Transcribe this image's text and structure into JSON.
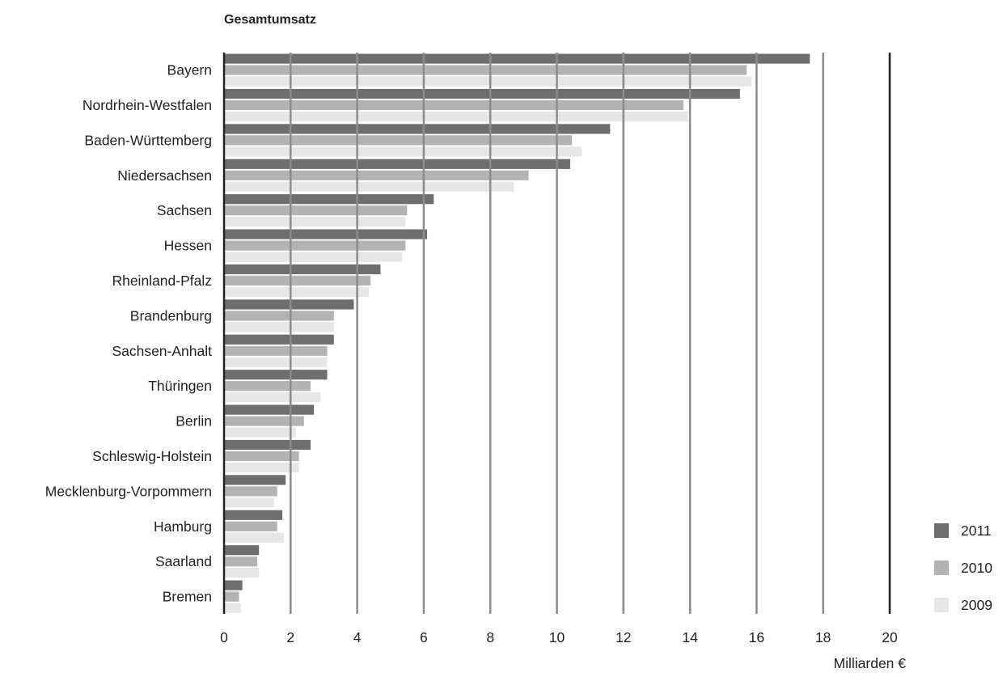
{
  "chart_data": {
    "type": "bar",
    "orientation": "horizontal",
    "title": "Gesamtumsatz",
    "xlabel": "Milliarden €",
    "ylabel": "",
    "xlim": [
      0,
      20
    ],
    "xticks": [
      0,
      2,
      4,
      6,
      8,
      10,
      12,
      14,
      16,
      18,
      20
    ],
    "grid": true,
    "legend_position": "bottom-right",
    "categories": [
      "Bayern",
      "Nordrhein-Westfalen",
      "Baden-Württemberg",
      "Niedersachsen",
      "Sachsen",
      "Hessen",
      "Rheinland-Pfalz",
      "Brandenburg",
      "Sachsen-Anhalt",
      "Thüringen",
      "Berlin",
      "Schleswig-Holstein",
      "Mecklenburg-Vorpommern",
      "Hamburg",
      "Saarland",
      "Bremen"
    ],
    "series": [
      {
        "name": "2011",
        "color": "#6e6e6e",
        "values": [
          17.6,
          15.5,
          11.6,
          10.4,
          6.3,
          6.1,
          4.7,
          3.9,
          3.3,
          3.1,
          2.7,
          2.6,
          1.85,
          1.75,
          1.05,
          0.55
        ]
      },
      {
        "name": "2010",
        "color": "#b3b3b3",
        "values": [
          15.7,
          13.8,
          10.45,
          9.15,
          5.5,
          5.45,
          4.4,
          3.3,
          3.1,
          2.6,
          2.4,
          2.25,
          1.6,
          1.6,
          1.0,
          0.45
        ]
      },
      {
        "name": "2009",
        "color": "#e6e6e6",
        "values": [
          15.85,
          13.95,
          10.75,
          8.7,
          5.45,
          5.35,
          4.35,
          3.3,
          3.1,
          2.9,
          2.15,
          2.25,
          1.5,
          1.8,
          1.05,
          0.5
        ]
      }
    ]
  }
}
